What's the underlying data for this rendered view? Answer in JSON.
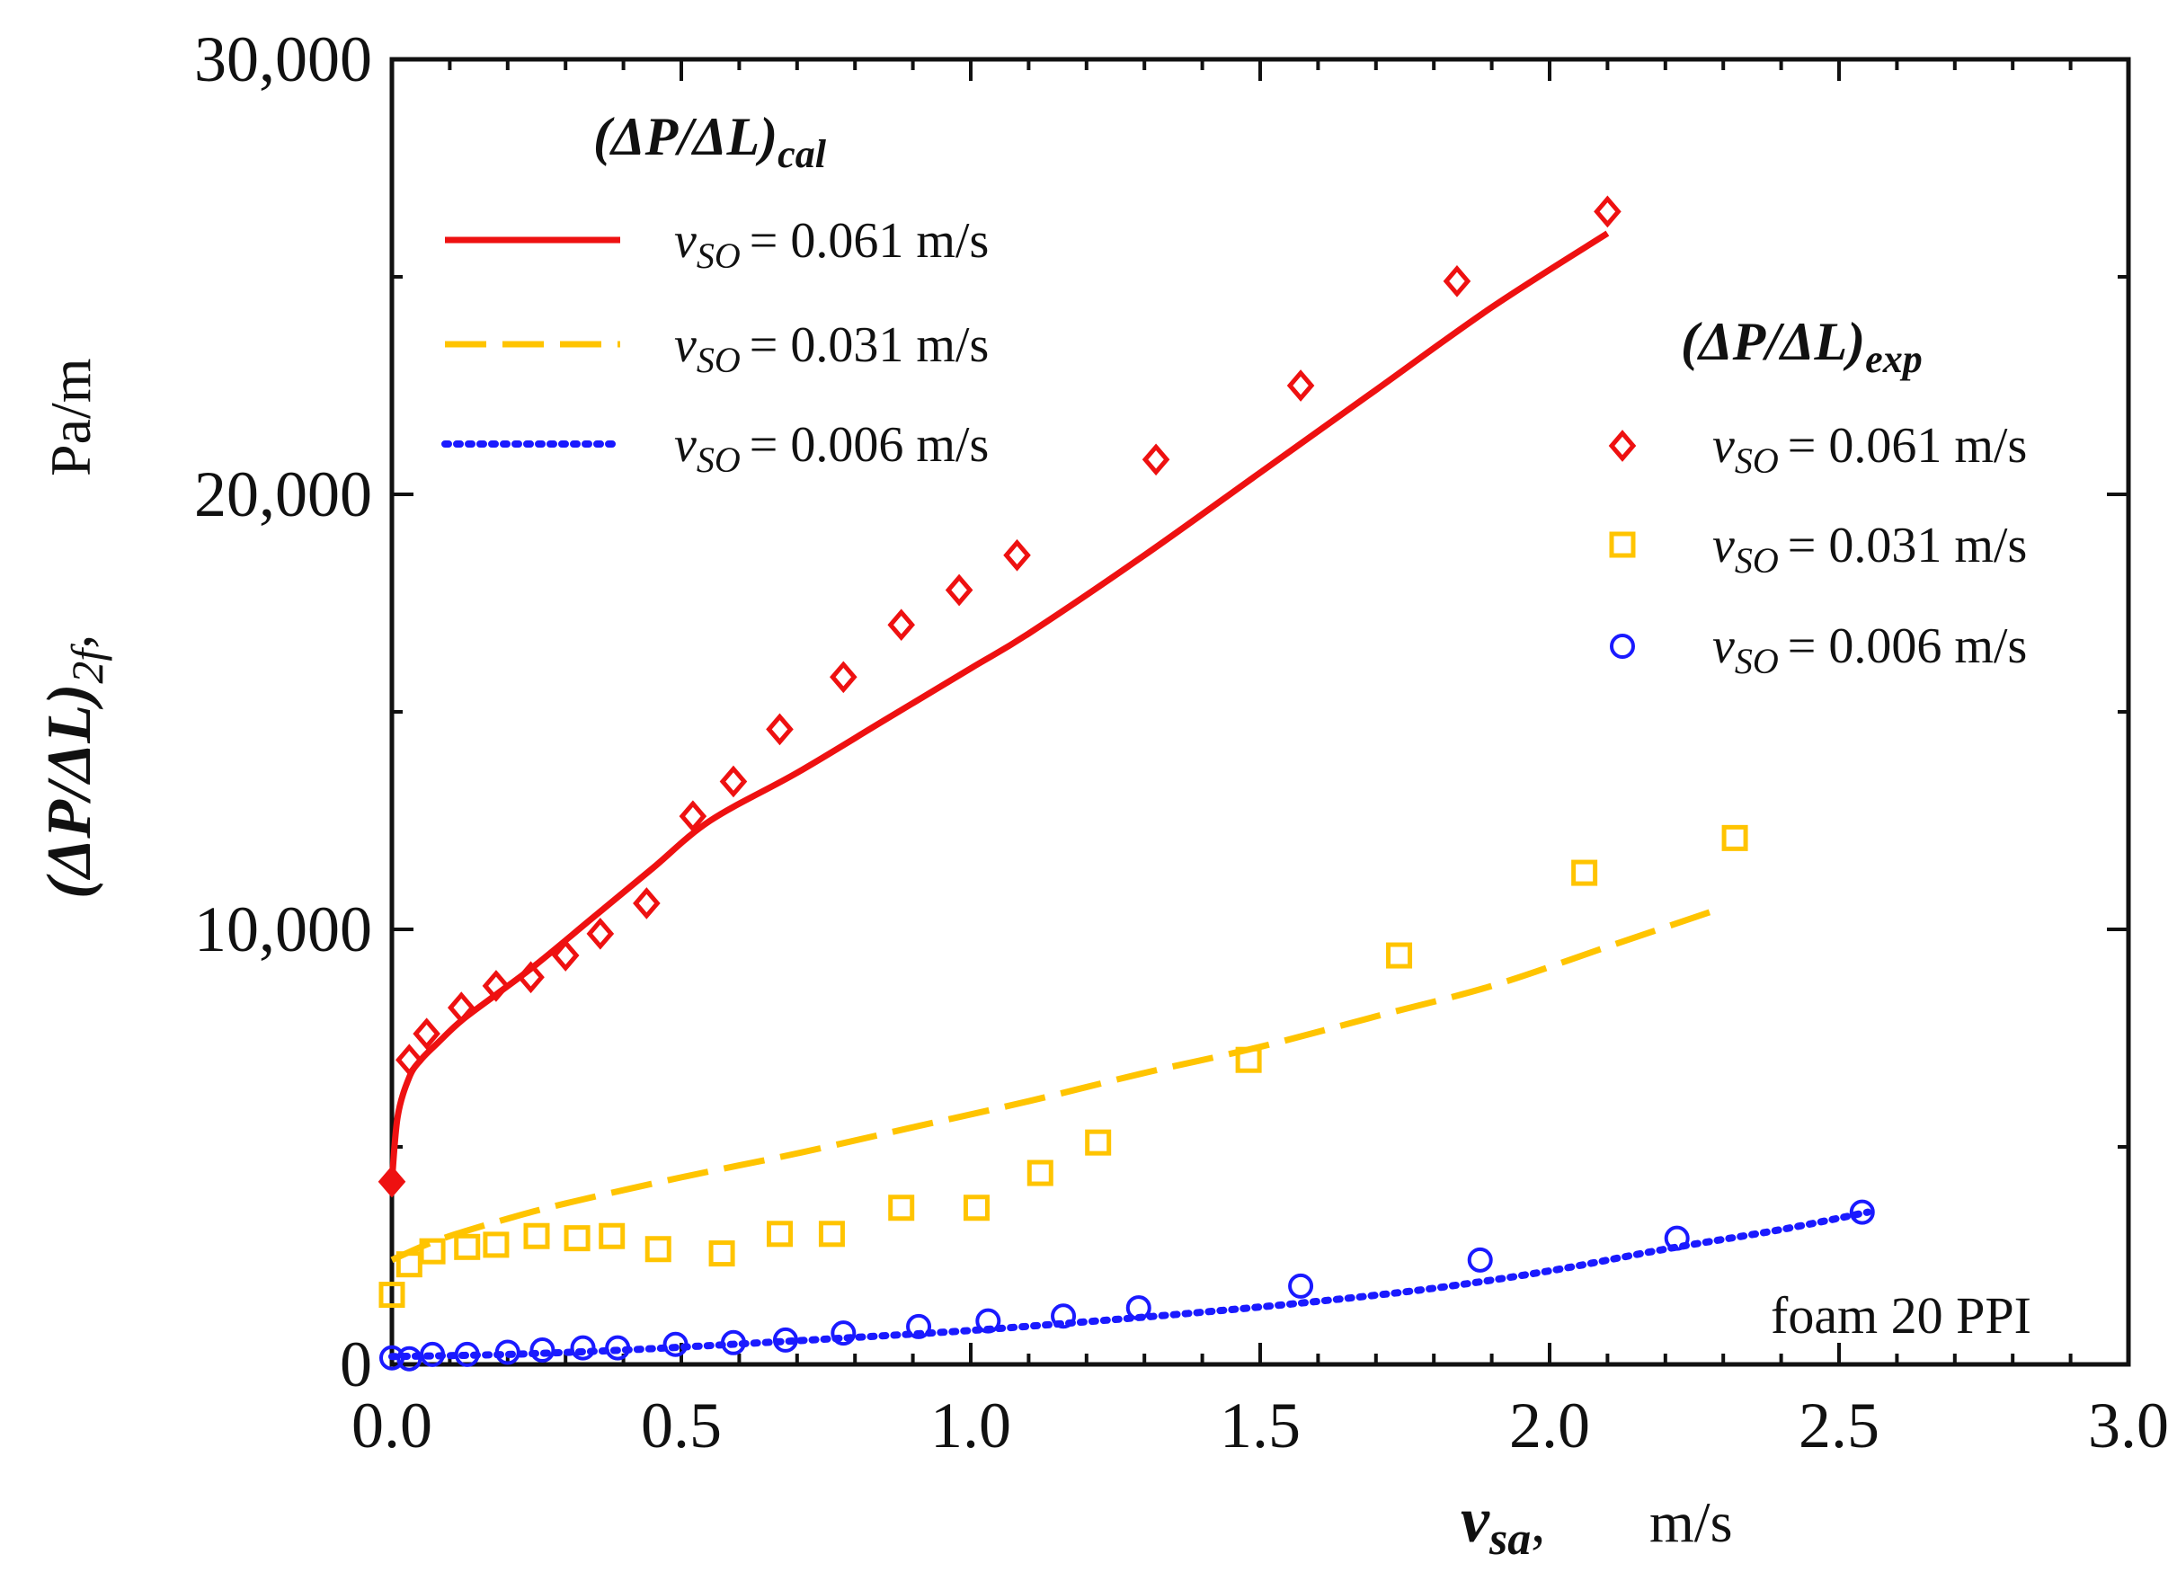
{
  "chart_data": {
    "type": "scatter",
    "title": "",
    "xlabel": {
      "symbol": "v",
      "subscript": "sa",
      "suffix": ",",
      "unit": "m/s"
    },
    "ylabel": {
      "text": "(ΔP/ΔL)",
      "subscript": "2f",
      "suffix": ",",
      "unit": "Pa/m"
    },
    "xlim": [
      0,
      3
    ],
    "ylim": [
      0,
      30000
    ],
    "x_ticks": [
      0,
      0.5,
      1.0,
      1.5,
      2.0,
      2.5,
      3.0
    ],
    "x_tick_labels": [
      "0.0",
      "0.5",
      "1.0",
      "1.5",
      "2.0",
      "2.5",
      "3.0"
    ],
    "y_ticks": [
      0,
      10000,
      20000,
      30000
    ],
    "y_tick_labels": [
      "0",
      "10,000",
      "20,000",
      "30,000"
    ],
    "grid": false,
    "annotation": "foam 20 PPI",
    "legend_calc": {
      "title": "(ΔP/ΔL)",
      "title_subscript": "cal",
      "location": "top-left",
      "entries": [
        {
          "symbol": "v",
          "subscript": "SO",
          "value_text": "= 0.061 m/s"
        },
        {
          "symbol": "v",
          "subscript": "SO",
          "value_text": "= 0.031 m/s"
        },
        {
          "symbol": "v",
          "subscript": "SO",
          "value_text": "= 0.006 m/s"
        }
      ]
    },
    "legend_exp": {
      "title": "(ΔP/ΔL)",
      "title_subscript": "exp",
      "location": "right",
      "entries": [
        {
          "symbol": "v",
          "subscript": "SO",
          "value_text": "= 0.061 m/s"
        },
        {
          "symbol": "v",
          "subscript": "SO",
          "value_text": "= 0.031 m/s"
        },
        {
          "symbol": "v",
          "subscript": "SO",
          "value_text": "= 0.006 m/s"
        }
      ]
    },
    "calculated_series": [
      {
        "name": "v_SO = 0.061 m/s (calculated)",
        "color": "#ee1111",
        "style": "solid",
        "x": [
          0,
          0.01,
          0.03,
          0.05,
          0.08,
          0.12,
          0.18,
          0.25,
          0.35,
          0.45,
          0.55,
          0.7,
          0.85,
          1.0,
          1.1,
          1.3,
          1.5,
          1.7,
          1.9,
          2.1
        ],
        "y": [
          4200,
          5700,
          6600,
          7000,
          7400,
          7900,
          8500,
          9200,
          10300,
          11400,
          12500,
          13600,
          14800,
          16000,
          16800,
          18600,
          20500,
          22400,
          24300,
          26000
        ]
      },
      {
        "name": "v_SO = 0.031 m/s (calculated)",
        "color": "#ffc400",
        "style": "dashed",
        "x": [
          0,
          0.05,
          0.1,
          0.2,
          0.3,
          0.5,
          0.7,
          0.9,
          1.1,
          1.3,
          1.5,
          1.7,
          1.9,
          2.1,
          2.3
        ],
        "y": [
          2400,
          2700,
          2950,
          3350,
          3700,
          4300,
          4850,
          5450,
          6050,
          6700,
          7300,
          8000,
          8700,
          9600,
          10500
        ]
      },
      {
        "name": "v_SO = 0.006 m/s (calculated)",
        "color": "#1a1aff",
        "style": "dotted",
        "x": [
          0,
          0.2,
          0.4,
          0.6,
          0.8,
          1.0,
          1.2,
          1.4,
          1.6,
          1.8,
          2.0,
          2.2,
          2.4,
          2.55
        ],
        "y": [
          180,
          230,
          330,
          470,
          620,
          780,
          980,
          1200,
          1450,
          1750,
          2150,
          2650,
          3100,
          3500
        ]
      }
    ],
    "experimental_series": [
      {
        "name": "v_SO = 0.061 m/s (experimental)",
        "color": "#ee1111",
        "marker": "diamond",
        "x": [
          0.0,
          0.03,
          0.06,
          0.12,
          0.18,
          0.24,
          0.3,
          0.36,
          0.44,
          0.52,
          0.59,
          0.67,
          0.78,
          0.88,
          0.98,
          1.08,
          1.32,
          1.57,
          1.84,
          2.1
        ],
        "y": [
          4200,
          7000,
          7600,
          8200,
          8700,
          8900,
          9400,
          9900,
          10600,
          12600,
          13400,
          14600,
          15800,
          17000,
          17800,
          18600,
          20800,
          22500,
          24900,
          26500
        ]
      },
      {
        "name": "v_SO = 0.031 m/s (experimental)",
        "color": "#ffc400",
        "marker": "square",
        "x": [
          0.0,
          0.03,
          0.07,
          0.13,
          0.18,
          0.25,
          0.32,
          0.38,
          0.46,
          0.57,
          0.67,
          0.76,
          0.88,
          1.01,
          1.12,
          1.22,
          1.48,
          1.74,
          2.06,
          2.32
        ],
        "y": [
          1600,
          2300,
          2600,
          2700,
          2750,
          2950,
          2900,
          2950,
          2650,
          2550,
          3000,
          3000,
          3600,
          3600,
          4400,
          5100,
          7000,
          9400,
          11300,
          12100
        ]
      },
      {
        "name": "v_SO = 0.006 m/s (experimental)",
        "color": "#1a1aff",
        "marker": "circle",
        "x": [
          0.0,
          0.03,
          0.07,
          0.13,
          0.2,
          0.26,
          0.33,
          0.39,
          0.49,
          0.59,
          0.68,
          0.78,
          0.91,
          1.03,
          1.16,
          1.29,
          1.57,
          1.88,
          2.22,
          2.54
        ],
        "y": [
          150,
          130,
          230,
          230,
          280,
          330,
          380,
          380,
          460,
          500,
          560,
          720,
          870,
          1000,
          1110,
          1300,
          1800,
          2400,
          2900,
          3500
        ]
      }
    ]
  }
}
